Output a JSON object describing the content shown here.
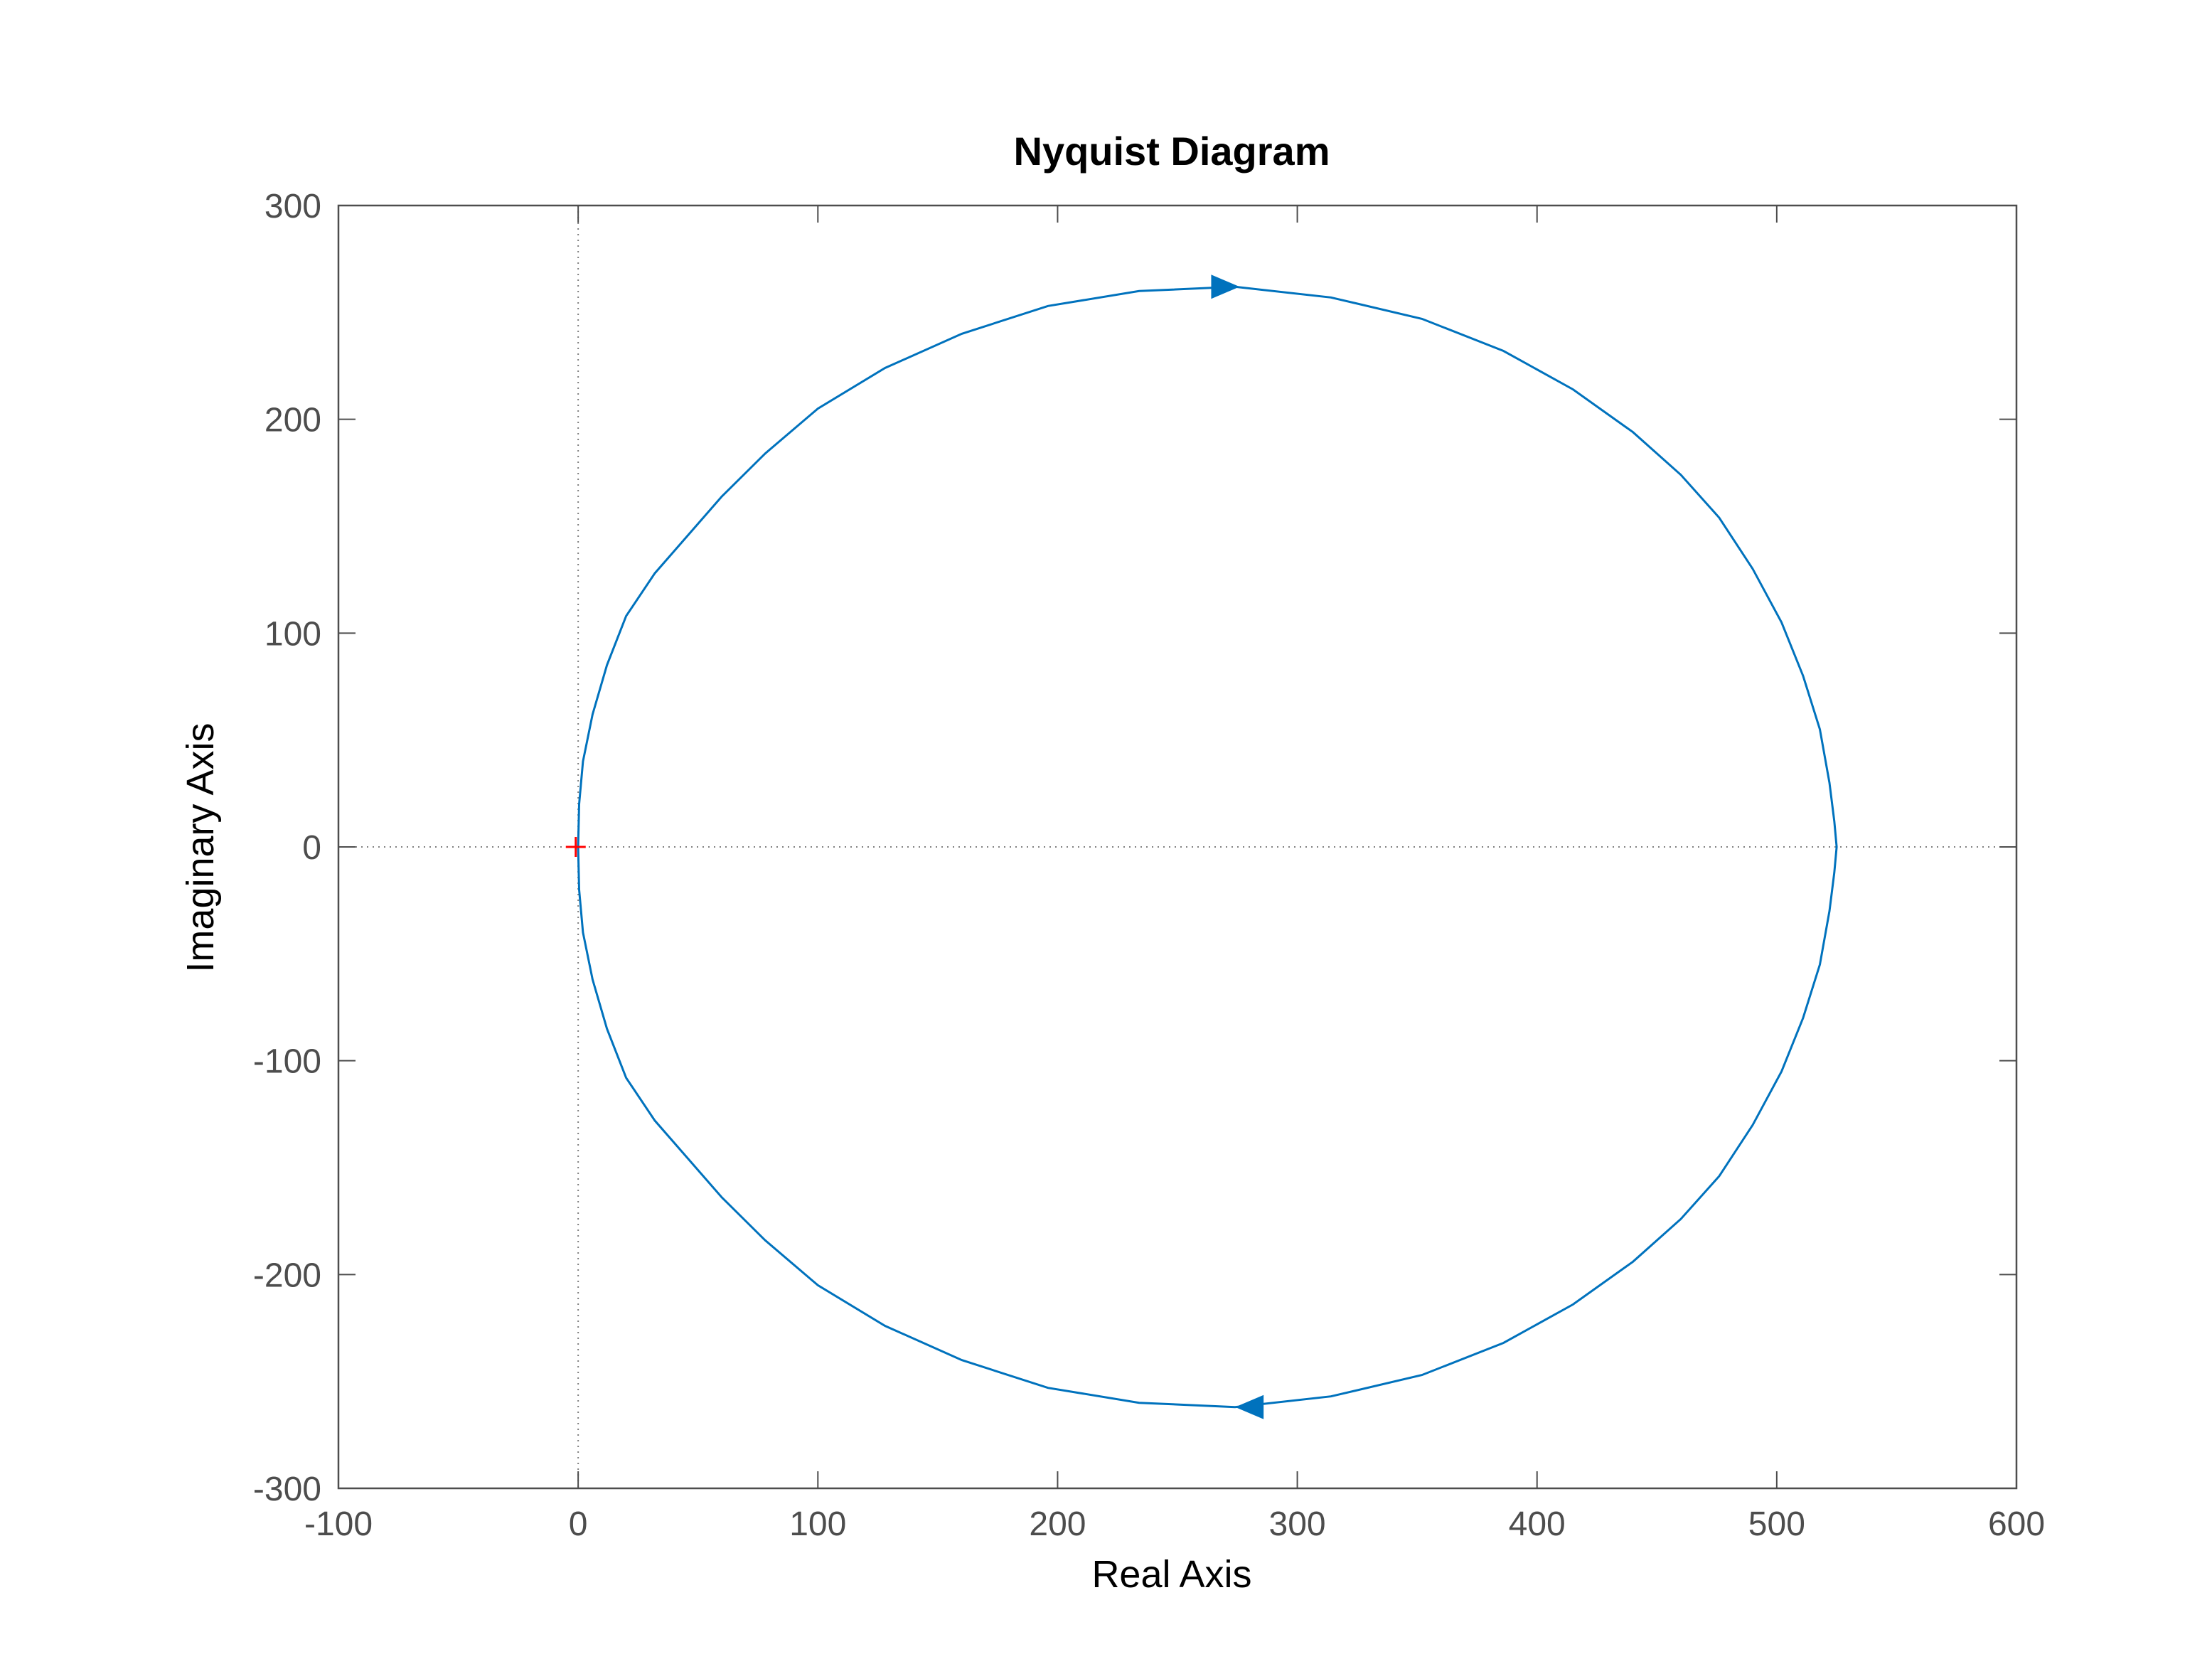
{
  "chart_data": {
    "type": "line",
    "title": "Nyquist Diagram",
    "xlabel": "Real Axis",
    "ylabel": "Imaginary Axis",
    "xlim": [
      -100,
      600
    ],
    "ylim": [
      -300,
      300
    ],
    "xticks": [
      -100,
      0,
      100,
      200,
      300,
      400,
      500,
      600
    ],
    "yticks": [
      -300,
      -200,
      -100,
      0,
      100,
      200,
      300
    ],
    "grid": false,
    "zero_lines": true,
    "colors": {
      "curve": "#0072BD",
      "critical_point": "#FF0000",
      "axes": "#4d4d4d",
      "zero_line": "#808080"
    },
    "critical_point": {
      "x": -1,
      "y": 0,
      "marker": "plus"
    },
    "series": [
      {
        "values_x": [
          0,
          0.4,
          2,
          6,
          12,
          20,
          32,
          46,
          60,
          78,
          100,
          128,
          160,
          196,
          234,
          274,
          314,
          352,
          386,
          415,
          440,
          460,
          476,
          490,
          502,
          511,
          518,
          522,
          524,
          525
        ],
        "values_y": [
          0,
          20,
          40,
          62,
          85,
          108,
          128,
          146,
          164,
          184,
          205,
          224,
          240,
          253,
          260,
          262,
          257,
          247,
          232,
          214,
          194,
          174,
          154,
          130,
          105,
          80,
          55,
          30,
          12,
          0
        ]
      }
    ],
    "arrows": [
      {
        "x": 270,
        "y": 262,
        "direction": "right"
      },
      {
        "x": 280,
        "y": -262,
        "direction": "left"
      }
    ]
  }
}
